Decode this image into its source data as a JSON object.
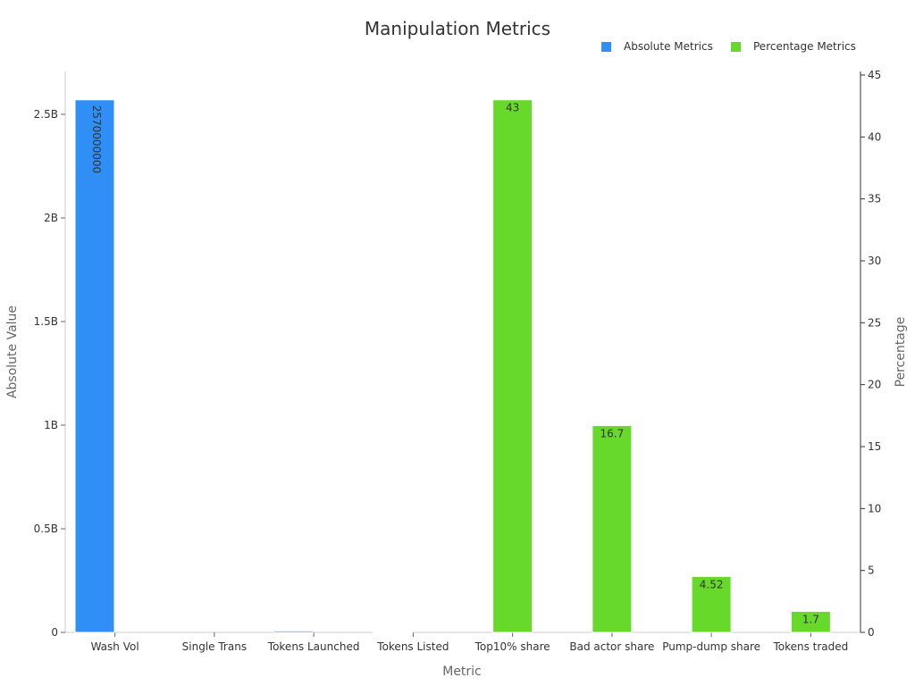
{
  "chart_data": {
    "type": "bar",
    "title": "Manipulation Metrics",
    "xlabel": "Metric",
    "ylabel": "Absolute Value",
    "y2label": "Percentage",
    "categories": [
      "Wash Vol",
      "Single Trans",
      "Tokens Launched",
      "Tokens Listed",
      "Top10% share",
      "Bad actor share",
      "Pump-dump share",
      "Tokens traded"
    ],
    "ylim": [
      0,
      2700000000
    ],
    "y2lim": [
      0,
      45
    ],
    "yticks": [
      0,
      500000000,
      1000000000,
      1500000000,
      2000000000,
      2500000000
    ],
    "ytick_labels": [
      "0",
      "0.5B",
      "1B",
      "1.5B",
      "2B",
      "2.5B"
    ],
    "y2ticks": [
      0,
      5,
      10,
      15,
      20,
      25,
      30,
      35,
      40,
      45
    ],
    "y2tick_labels": [
      "0",
      "5",
      "10",
      "15",
      "20",
      "25",
      "30",
      "35",
      "40",
      "45"
    ],
    "legend_position": "top-right",
    "series": [
      {
        "name": "Absolute Metrics",
        "axis": "left",
        "color": "#2f8ff7",
        "values": [
          2570000000,
          null,
          7000000,
          1500000,
          null,
          null,
          null,
          null
        ],
        "labels": [
          "2570000000",
          null,
          null,
          null,
          null,
          null,
          null,
          null
        ]
      },
      {
        "name": "Percentage Metrics",
        "axis": "right",
        "color": "#66d92a",
        "values": [
          null,
          null,
          null,
          null,
          43,
          16.7,
          4.52,
          1.7
        ],
        "labels": [
          null,
          null,
          null,
          null,
          "43",
          "16.7",
          "4.52",
          "1.7"
        ]
      }
    ]
  }
}
